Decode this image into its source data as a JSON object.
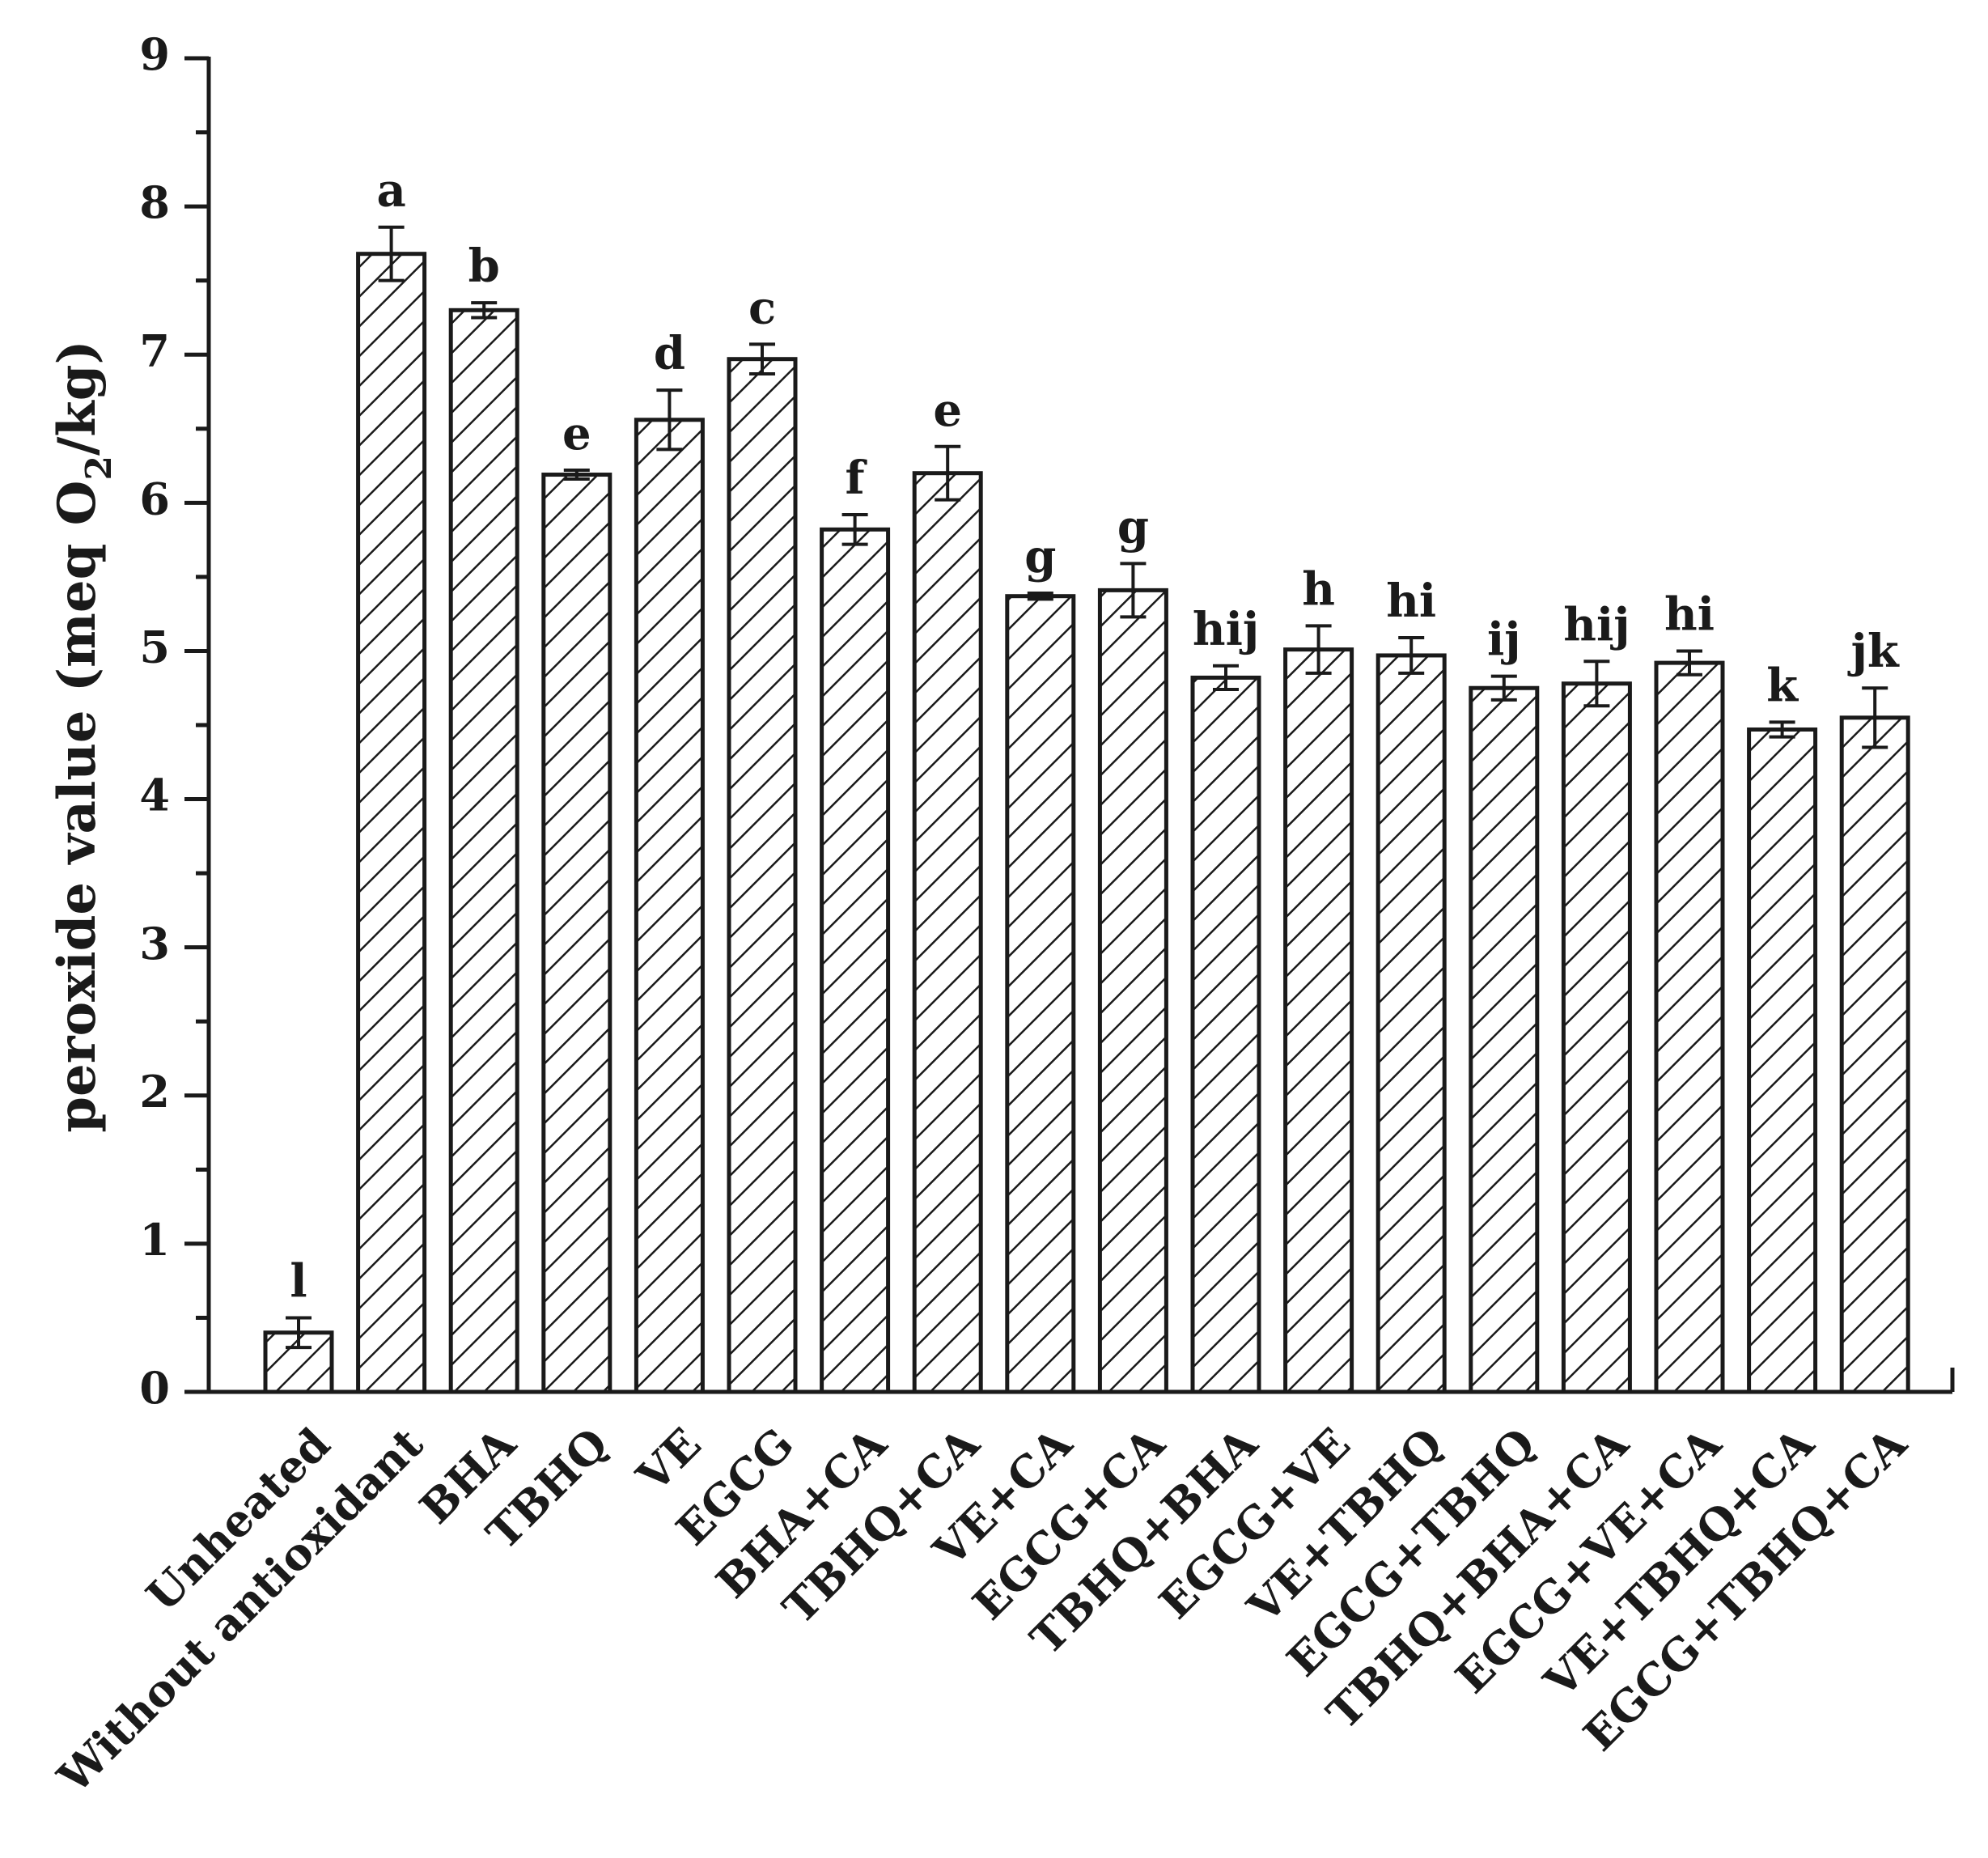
{
  "chart_data": {
    "type": "bar",
    "title": "",
    "xlabel": "",
    "ylabel": "peroxide value (meq O",
    "ylabel_sub": "2",
    "ylabel_tail": "/kg)",
    "ylim": [
      0,
      9
    ],
    "yticks": [
      "0",
      "1",
      "2",
      "3",
      "4",
      "5",
      "6",
      "7",
      "8",
      "9"
    ],
    "grid": false,
    "legend": "none",
    "categories": [
      "Unheated",
      "Without antioxidant",
      "BHA",
      "TBHQ",
      "VE",
      "EGCG",
      "BHA+CA",
      "TBHQ+CA",
      "VE+CA",
      "EGCG+CA",
      "TBHQ+BHA",
      "EGCG+VE",
      "VE+TBHQ",
      "EGCG+TBHQ",
      "TBHQ+BHA+CA",
      "EGCG+VE+CA",
      "VE+TBHQ+CA",
      "EGCG+TBHQ+CA"
    ],
    "values": [
      0.4,
      7.68,
      7.3,
      6.19,
      6.56,
      6.97,
      5.82,
      6.2,
      5.37,
      5.41,
      4.82,
      5.01,
      4.97,
      4.75,
      4.78,
      4.92,
      4.47,
      4.55
    ],
    "errors": [
      0.1,
      0.18,
      0.05,
      0.03,
      0.2,
      0.1,
      0.1,
      0.18,
      0.02,
      0.18,
      0.08,
      0.16,
      0.12,
      0.08,
      0.15,
      0.08,
      0.05,
      0.2
    ],
    "significance_letters": [
      "l",
      "a",
      "b",
      "e",
      "d",
      "c",
      "f",
      "e",
      "g",
      "g",
      "hij",
      "h",
      "hi",
      "ij",
      "hij",
      "hi",
      "k",
      "jk"
    ],
    "colors": {
      "ink": "#1a1a1a",
      "background": "#ffffff"
    }
  }
}
